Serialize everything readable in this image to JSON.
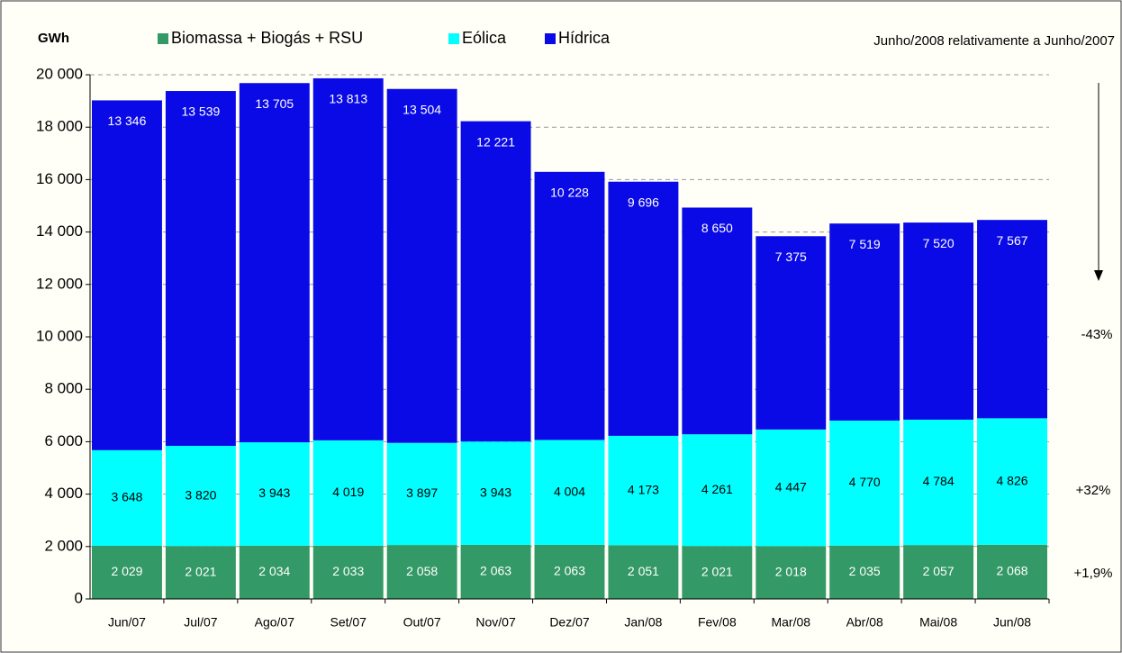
{
  "chart_data": {
    "type": "stacked_bar",
    "y_label": "GWh",
    "subtitle": "Junho/2008 relativamente a Junho/2007",
    "annotations": [
      "-43%",
      "+32%",
      "+1,9%"
    ],
    "categories": [
      "Jun/07",
      "Jul/07",
      "Ago/07",
      "Set/07",
      "Out/07",
      "Nov/07",
      "Dez/07",
      "Jan/08",
      "Fev/08",
      "Mar/08",
      "Abr/08",
      "Mai/08",
      "Jun/08"
    ],
    "series": [
      {
        "name": "Biomassa + Biogás + RSU",
        "color": "#339966",
        "label_color": "#ffffff",
        "values": [
          2029,
          2021,
          2034,
          2033,
          2058,
          2063,
          2063,
          2051,
          2021,
          2018,
          2035,
          2057,
          2068
        ],
        "value_labels": [
          "2 029",
          "2 021",
          "2 034",
          "2 033",
          "2 058",
          "2 063",
          "2 063",
          "2 051",
          "2 021",
          "2 018",
          "2 035",
          "2 057",
          "2 068"
        ]
      },
      {
        "name": "Eólica",
        "color": "#00ffff",
        "label_color": "#000000",
        "values": [
          3648,
          3820,
          3943,
          4019,
          3897,
          3943,
          4004,
          4173,
          4261,
          4447,
          4770,
          4784,
          4826
        ],
        "value_labels": [
          "3 648",
          "3 820",
          "3 943",
          "4 019",
          "3 897",
          "3 943",
          "4 004",
          "4 173",
          "4 261",
          "4 447",
          "4 770",
          "4 784",
          "4 826"
        ]
      },
      {
        "name": "Hídrica",
        "color": "#0a0ae6",
        "label_color": "#ffffff",
        "values": [
          13346,
          13539,
          13705,
          13813,
          13504,
          12221,
          10228,
          9696,
          8650,
          7375,
          7519,
          7520,
          7567
        ],
        "value_labels": [
          "13 346",
          "13 539",
          "13 705",
          "13 813",
          "13 504",
          "12 221",
          "10 228",
          "9 696",
          "8 650",
          "7 375",
          "7 519",
          "7 520",
          "7 567"
        ]
      }
    ],
    "ylim": [
      0,
      20000
    ],
    "yticks": [
      0,
      {
        "value": 2000,
        "label": "2 000"
      },
      {
        "value": 4000,
        "label": "4 000"
      },
      {
        "value": 6000,
        "label": "6 000"
      },
      {
        "value": 8000,
        "label": "8 000"
      },
      {
        "value": 10000,
        "label": "10 000"
      },
      {
        "value": 12000,
        "label": "12 000"
      },
      {
        "value": 14000,
        "label": "14 000"
      },
      {
        "value": 16000,
        "label": "16 000"
      },
      {
        "value": 18000,
        "label": "18 000"
      },
      {
        "value": 20000,
        "label": "20 000"
      }
    ],
    "grid": true
  }
}
